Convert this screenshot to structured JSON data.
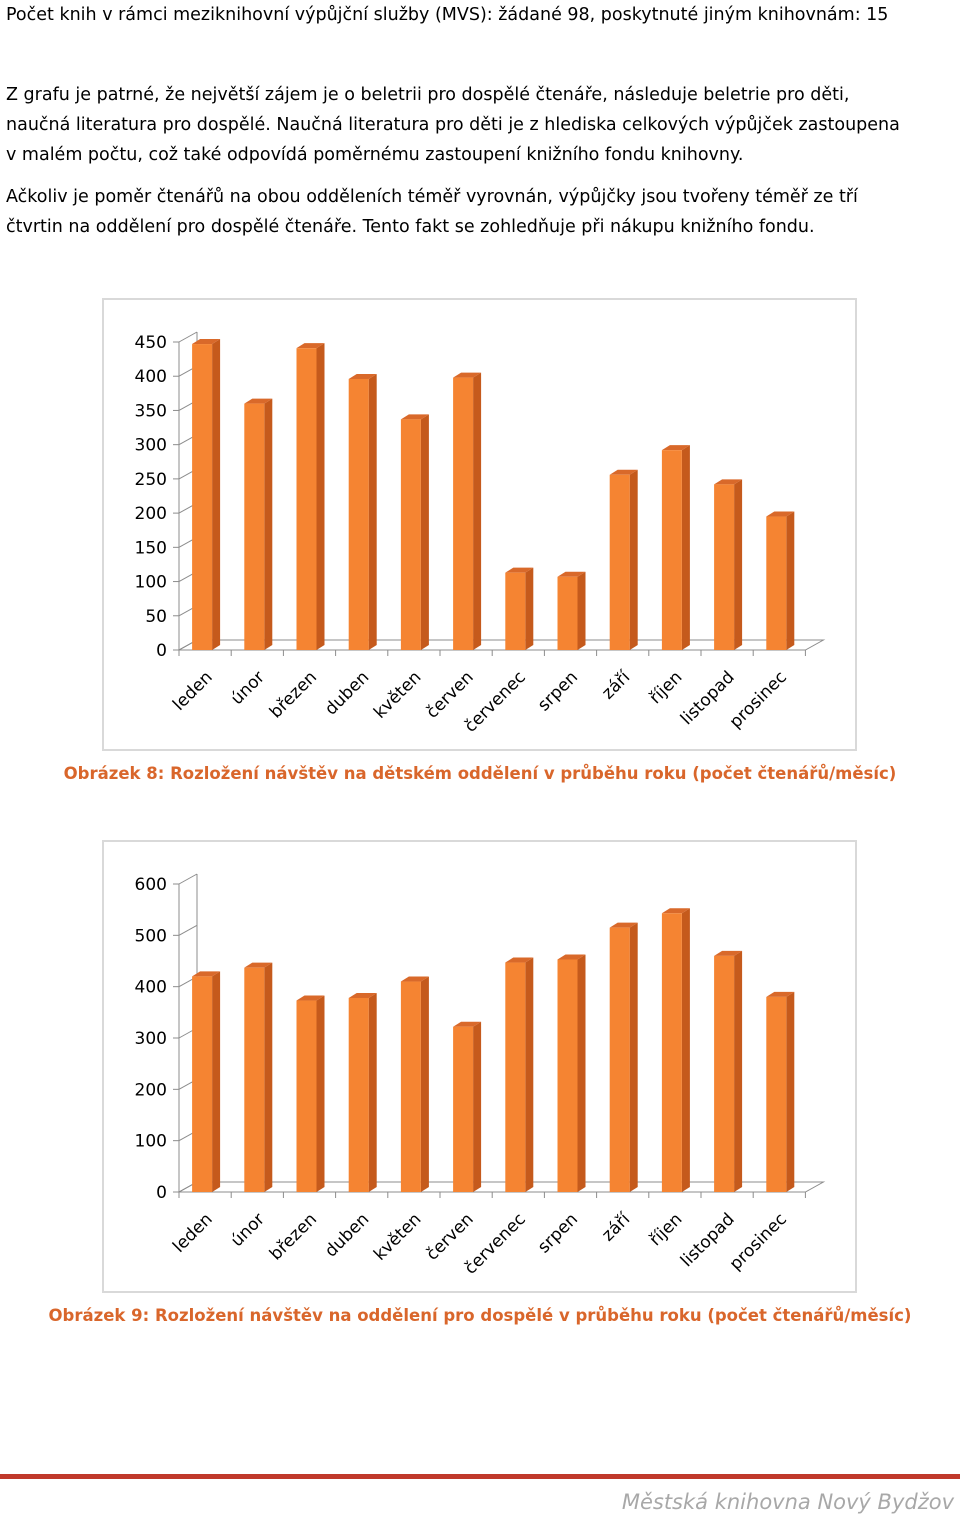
{
  "intro": {
    "heading": "Počet knih v rámci meziknihovní výpůjční služby (MVS): žádané 98, poskytnuté jiným knihovnám: 15",
    "paragraph1": [
      "Z grafu je patrné, že největší zájem je o beletrii pro dospělé čtenáře, následuje beletrie pro děti,",
      "naučná literatura pro dospělé. Naučná literatura pro děti je z hlediska celkových výpůjček zastoupena",
      "v malém počtu, což také odpovídá poměrnému zastoupení knižního fondu knihovny."
    ],
    "paragraph2": [
      "Ačkoliv je poměr čtenářů na obou odděleních téměř vyrovnán, výpůjčky jsou tvořeny téměř ze tří",
      "čtvrtin na oddělení pro dospělé čtenáře. Tento fakt se  zohledňuje  při nákupu knižního fondu."
    ]
  },
  "colors": {
    "bar_front": "#f58432",
    "bar_side": "#c55a1c",
    "bar_top": "#d9692a",
    "caption": "#d9662b",
    "footer_rule": "#c0392b"
  },
  "chart_data": [
    {
      "type": "bar",
      "categories": [
        "leden",
        "únor",
        "březen",
        "duben",
        "květen",
        "červen",
        "červenec",
        "srpen",
        "září",
        "říjen",
        "listopad",
        "prosinec"
      ],
      "values": [
        447,
        360,
        441,
        396,
        337,
        398,
        113,
        107,
        256,
        292,
        242,
        195
      ],
      "yticks": [
        0,
        50,
        100,
        150,
        200,
        250,
        300,
        350,
        400,
        450
      ],
      "ylim": [
        0,
        450
      ],
      "grid": false,
      "style": "3d",
      "caption": "Obrázek 8: Rozložení návštěv na dětském oddělení v průběhu roku (počet čtenářů/měsíc)"
    },
    {
      "type": "bar",
      "categories": [
        "leden",
        "únor",
        "březen",
        "duben",
        "květen",
        "červen",
        "červenec",
        "srpen",
        "září",
        "říjen",
        "listopad",
        "prosinec"
      ],
      "values": [
        420,
        437,
        373,
        378,
        410,
        322,
        447,
        453,
        515,
        543,
        460,
        380
      ],
      "yticks": [
        0,
        100,
        200,
        300,
        400,
        500,
        600
      ],
      "ylim": [
        0,
        600
      ],
      "grid": false,
      "style": "3d",
      "caption": "Obrázek 9: Rozložení návštěv na oddělení pro dospělé v průběhu roku (počet čtenářů/měsíc)"
    }
  ],
  "footer": {
    "brand": "Městská knihovna Nový Bydžov"
  }
}
